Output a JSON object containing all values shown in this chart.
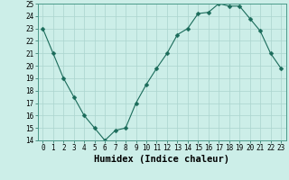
{
  "x": [
    0,
    1,
    2,
    3,
    4,
    5,
    6,
    7,
    8,
    9,
    10,
    11,
    12,
    13,
    14,
    15,
    16,
    17,
    18,
    19,
    20,
    21,
    22,
    23
  ],
  "y": [
    23,
    21,
    19,
    17.5,
    16,
    15,
    14,
    14.8,
    15,
    17,
    18.5,
    19.8,
    21,
    22.5,
    23,
    24.2,
    24.3,
    25,
    24.8,
    24.8,
    23.8,
    22.8,
    21,
    19.8
  ],
  "ylim": [
    14,
    25
  ],
  "yticks": [
    14,
    15,
    16,
    17,
    18,
    19,
    20,
    21,
    22,
    23,
    24,
    25
  ],
  "xticks": [
    0,
    1,
    2,
    3,
    4,
    5,
    6,
    7,
    8,
    9,
    10,
    11,
    12,
    13,
    14,
    15,
    16,
    17,
    18,
    19,
    20,
    21,
    22,
    23
  ],
  "xlabel": "Humidex (Indice chaleur)",
  "line_color": "#1a6b5a",
  "marker": "D",
  "marker_size": 2.5,
  "bg_color": "#cceee8",
  "grid_color": "#aad4ce",
  "tick_label_fontsize": 5.5,
  "xlabel_fontsize": 7.5
}
